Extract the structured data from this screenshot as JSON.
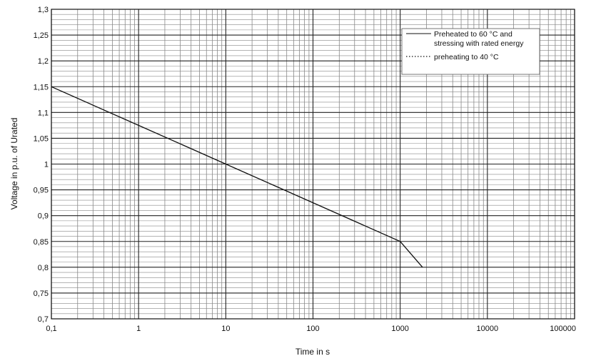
{
  "chart_data": {
    "type": "line",
    "xlabel": "Time in s",
    "ylabel": "Voltage in p.u. of Urated",
    "x_scale": "log",
    "xlim": [
      0.1,
      100000
    ],
    "ylim": [
      0.7,
      1.3
    ],
    "x_ticks": [
      "0,1",
      "1",
      "10",
      "100",
      "1000",
      "10000",
      "100000"
    ],
    "y_ticks": [
      "0,7",
      "0,75",
      "0,8",
      "0,85",
      "0,9",
      "0,95",
      "1",
      "1,05",
      "1,1",
      "1,15",
      "1,2",
      "1,25",
      "1,3"
    ],
    "grid": true,
    "legend_position": "top-right",
    "legend": [
      {
        "line1": "Preheated to 60 °C and",
        "line2": "stressing with rated energy",
        "style": "solid"
      },
      {
        "line1": "preheating to 40 °C",
        "line2": "",
        "style": "dotted"
      }
    ],
    "series": [
      {
        "style": "solid",
        "color": "#111111",
        "x": [
          0.1,
          1,
          10,
          100,
          1000,
          1800
        ],
        "y": [
          1.15,
          1.075,
          1.0,
          0.925,
          0.85,
          0.8
        ]
      }
    ]
  }
}
